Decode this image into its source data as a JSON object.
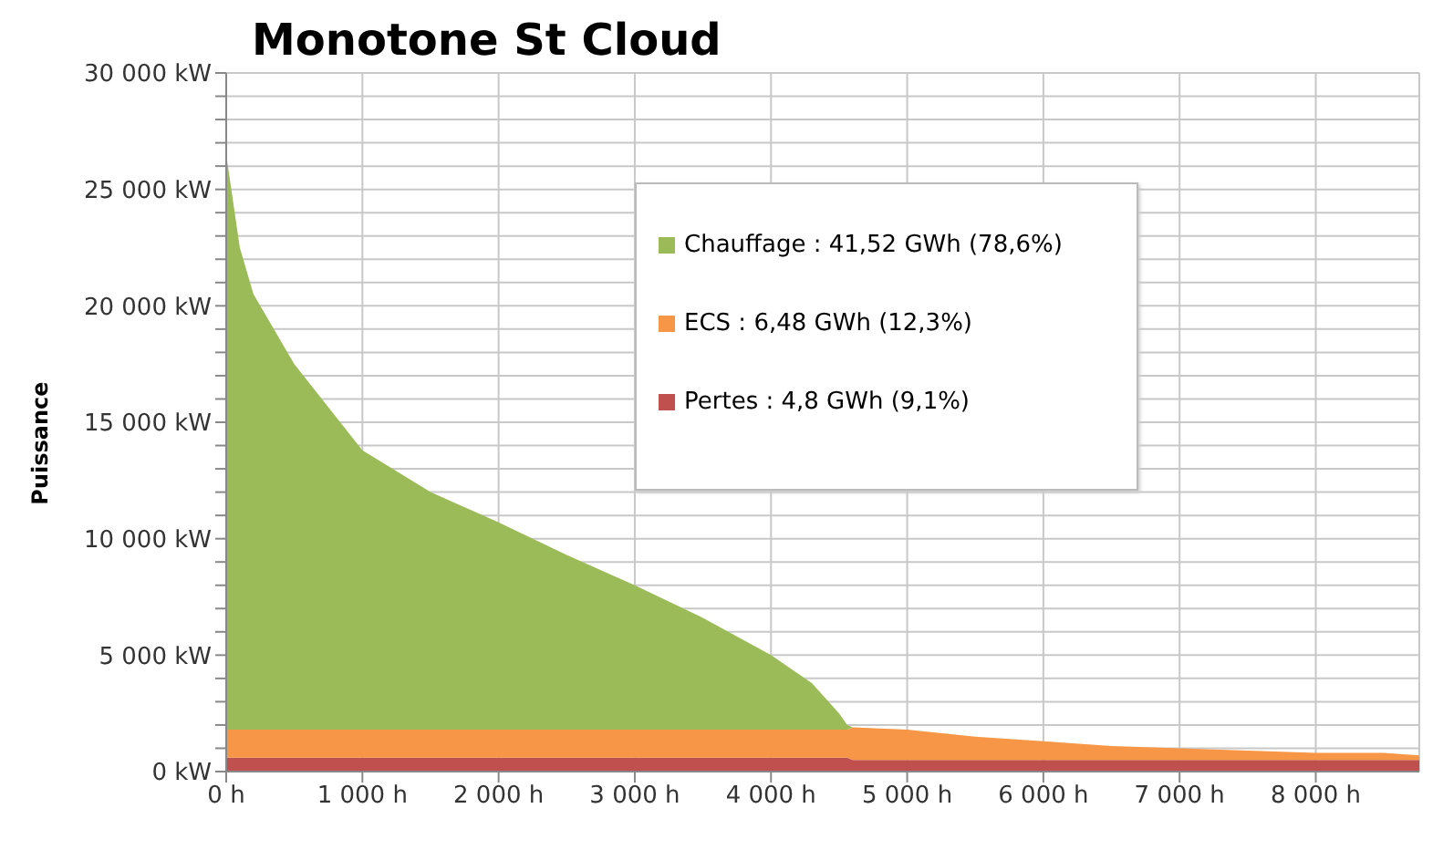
{
  "chart_data": {
    "type": "area",
    "title": "Monotone St Cloud",
    "ylabel": "Puissance",
    "stacked": true,
    "x": [
      0,
      100,
      200,
      500,
      1000,
      1500,
      2000,
      2500,
      3000,
      3500,
      4000,
      4300,
      4500,
      4560,
      4600,
      5000,
      5500,
      6000,
      6500,
      7000,
      7500,
      8000,
      8500,
      8760
    ],
    "series": [
      {
        "name": "Pertes : 4,8 GWh (9,1%)",
        "color": "#c0504d",
        "values": [
          600,
          600,
          600,
          600,
          600,
          600,
          600,
          600,
          600,
          600,
          600,
          600,
          600,
          600,
          500,
          500,
          500,
          500,
          500,
          500,
          500,
          500,
          500,
          500
        ]
      },
      {
        "name": "ECS : 6,48 GWh (12,3%)",
        "color": "#f79646",
        "values": [
          1200,
          1200,
          1200,
          1200,
          1200,
          1200,
          1200,
          1200,
          1200,
          1200,
          1200,
          1200,
          1200,
          1200,
          1400,
          1300,
          1000,
          800,
          600,
          500,
          400,
          300,
          300,
          200
        ]
      },
      {
        "name": "Chauffage : 41,52 GWh (78,6%)",
        "color": "#9bbb59",
        "values": [
          24700,
          20700,
          18700,
          15700,
          12000,
          10200,
          8900,
          7500,
          6200,
          4800,
          3200,
          2000,
          700,
          200,
          0,
          0,
          0,
          0,
          0,
          0,
          0,
          0,
          0,
          0
        ]
      }
    ],
    "xlim": [
      0,
      8760
    ],
    "xticks": [
      {
        "value": 0,
        "label": "0 h"
      },
      {
        "value": 1000,
        "label": "1 000 h"
      },
      {
        "value": 2000,
        "label": "2 000 h"
      },
      {
        "value": 3000,
        "label": "3 000 h"
      },
      {
        "value": 4000,
        "label": "4 000 h"
      },
      {
        "value": 5000,
        "label": "5 000 h"
      },
      {
        "value": 6000,
        "label": "6 000 h"
      },
      {
        "value": 7000,
        "label": "7 000 h"
      },
      {
        "value": 8000,
        "label": "8 000 h"
      }
    ],
    "ylim": [
      0,
      30000
    ],
    "yticks": [
      {
        "value": 0,
        "label": "0 kW"
      },
      {
        "value": 1000,
        "label": null
      },
      {
        "value": 2000,
        "label": null
      },
      {
        "value": 3000,
        "label": null
      },
      {
        "value": 4000,
        "label": null
      },
      {
        "value": 5000,
        "label": "5 000 kW"
      },
      {
        "value": 6000,
        "label": null
      },
      {
        "value": 7000,
        "label": null
      },
      {
        "value": 8000,
        "label": null
      },
      {
        "value": 9000,
        "label": null
      },
      {
        "value": 10000,
        "label": "10 000 kW"
      },
      {
        "value": 11000,
        "label": null
      },
      {
        "value": 12000,
        "label": null
      },
      {
        "value": 13000,
        "label": null
      },
      {
        "value": 14000,
        "label": null
      },
      {
        "value": 15000,
        "label": "15 000 kW"
      },
      {
        "value": 16000,
        "label": null
      },
      {
        "value": 17000,
        "label": null
      },
      {
        "value": 18000,
        "label": null
      },
      {
        "value": 19000,
        "label": null
      },
      {
        "value": 20000,
        "label": "20 000 kW"
      },
      {
        "value": 21000,
        "label": null
      },
      {
        "value": 22000,
        "label": null
      },
      {
        "value": 23000,
        "label": null
      },
      {
        "value": 24000,
        "label": null
      },
      {
        "value": 25000,
        "label": "25 000 kW"
      },
      {
        "value": 26000,
        "label": null
      },
      {
        "value": 27000,
        "label": null
      },
      {
        "value": 28000,
        "label": null
      },
      {
        "value": 29000,
        "label": null
      },
      {
        "value": 30000,
        "label": "30 000 kW"
      }
    ],
    "grid": true,
    "legend": "top right"
  }
}
